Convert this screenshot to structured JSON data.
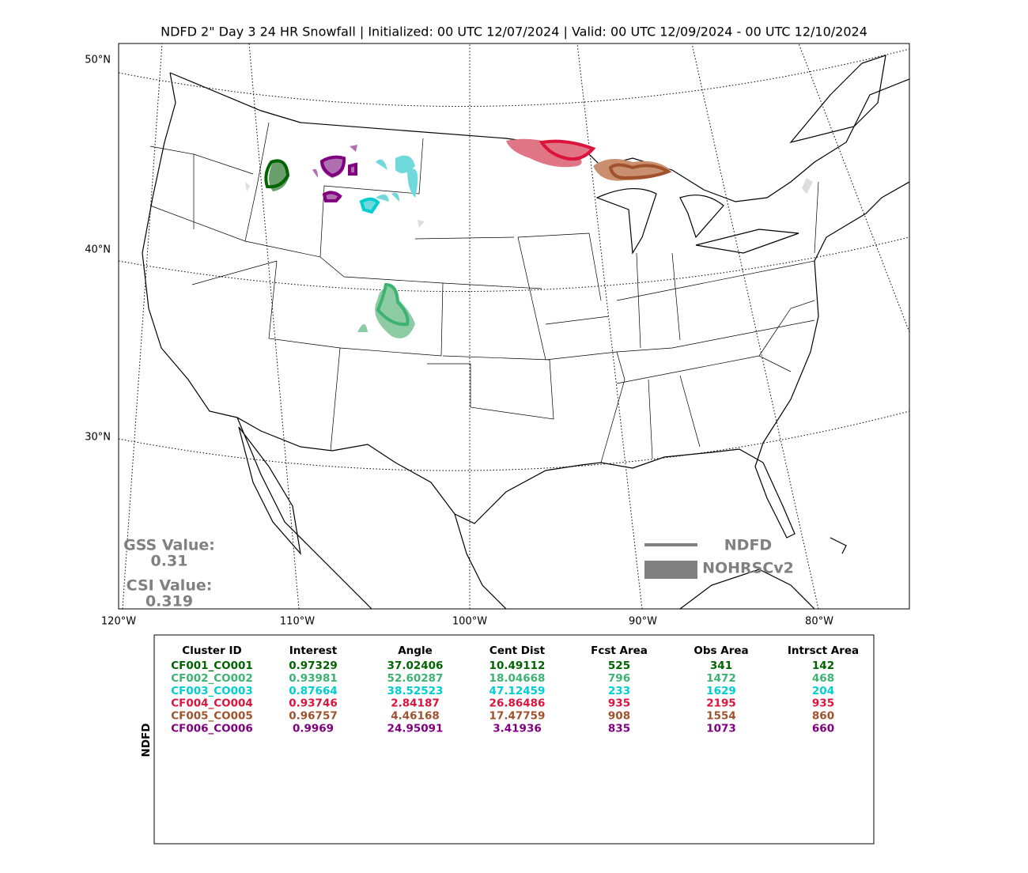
{
  "title": "NDFD 2\" Day 3 24 HR Snowfall | Initialized: 00 UTC 12/07/2024 | Valid: 00 UTC 12/09/2024 - 00 UTC 12/10/2024",
  "map": {
    "lat_labels": [
      "50°N",
      "40°N",
      "30°N"
    ],
    "lon_labels": [
      "120°W",
      "110°W",
      "100°W",
      "90°W",
      "80°W"
    ]
  },
  "scores": {
    "gss_label": "GSS Value:",
    "gss": "0.31",
    "csi_label": "CSI Value:",
    "csi": "0.319"
  },
  "legend": {
    "forecast": "NDFD",
    "observed": "NOHRSCv2"
  },
  "table": {
    "side_label": "NDFD",
    "columns": [
      "Cluster ID",
      "Interest",
      "Angle",
      "Cent Dist",
      "Fcst Area",
      "Obs Area",
      "Intrsct Area"
    ],
    "row_colors": [
      "#006400",
      "#3cb371",
      "#00ced1",
      "#dc143c",
      "#a0522d",
      "#800080"
    ],
    "rows": [
      [
        "CF001_CO001",
        0.97329,
        37.02406,
        10.49112,
        525,
        341,
        142
      ],
      [
        "CF002_CO002",
        0.93981,
        52.60287,
        18.04668,
        796,
        1472,
        468
      ],
      [
        "CF003_CO003",
        0.87664,
        38.52523,
        47.12459,
        233,
        1629,
        204
      ],
      [
        "CF004_CO004",
        0.93746,
        2.84187,
        26.86486,
        935,
        2195,
        935
      ],
      [
        "CF005_CO005",
        0.96757,
        4.46168,
        17.47759,
        908,
        1554,
        860
      ],
      [
        "CF006_CO006",
        0.9969,
        24.95091,
        3.41936,
        835,
        1073,
        660
      ]
    ]
  }
}
